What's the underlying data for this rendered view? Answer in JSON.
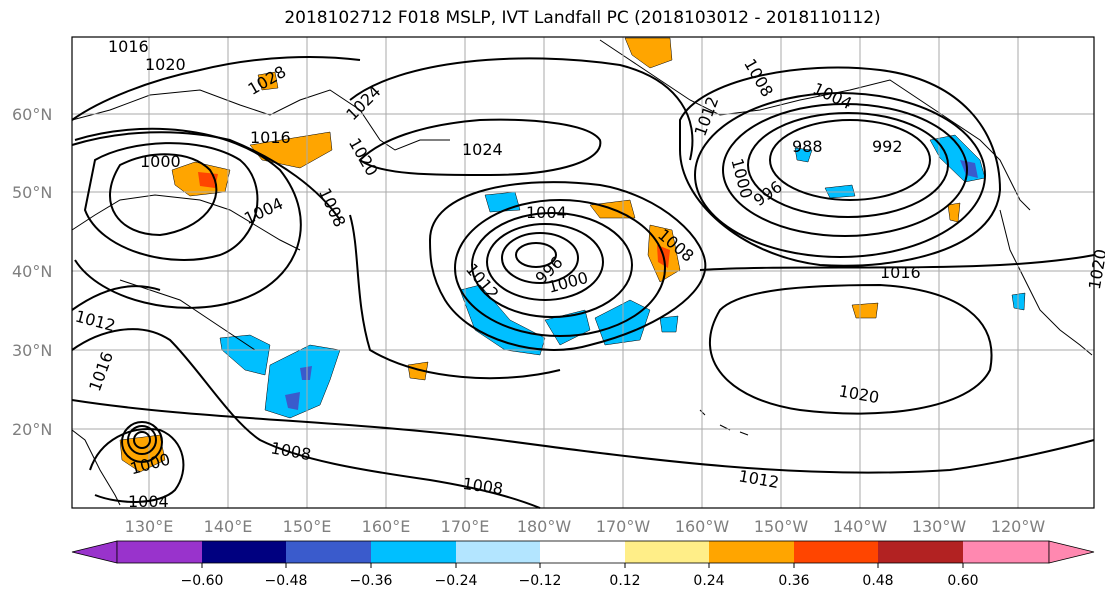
{
  "title": "2018102712 F018 MSLP, IVT Landfall PC (2018103012 - 2018110112)",
  "lat_labels": [
    "60°N",
    "50°N",
    "40°N",
    "30°N",
    "20°N"
  ],
  "lon_labels": [
    "130°E",
    "140°E",
    "150°E",
    "160°E",
    "170°E",
    "180°W",
    "170°W",
    "160°W",
    "150°W",
    "140°W",
    "130°W",
    "120°W"
  ],
  "isobar_labels": [
    "1016",
    "1020",
    "1024",
    "1028",
    "1016",
    "1020",
    "1000",
    "1004",
    "1008",
    "1024",
    "1004",
    "996",
    "1000",
    "1008",
    "1012",
    "1012",
    "1008",
    "1004",
    "988",
    "992",
    "1000",
    "996",
    "1016",
    "1020",
    "1012",
    "1016",
    "1000",
    "1004",
    "1008",
    "1008",
    "1012",
    "1020"
  ],
  "colorbar": {
    "ticks": [
      "−0.60",
      "−0.48",
      "−0.36",
      "−0.24",
      "−0.12",
      "0.12",
      "0.24",
      "0.36",
      "0.48",
      "0.60"
    ],
    "colors": [
      "#9933cc",
      "#000080",
      "#3a5bcc",
      "#00bfff",
      "#b3e5ff",
      "#ffffff",
      "#ffee88",
      "#ffa500",
      "#ff4500",
      "#b22222",
      "#ff88b0"
    ]
  }
}
